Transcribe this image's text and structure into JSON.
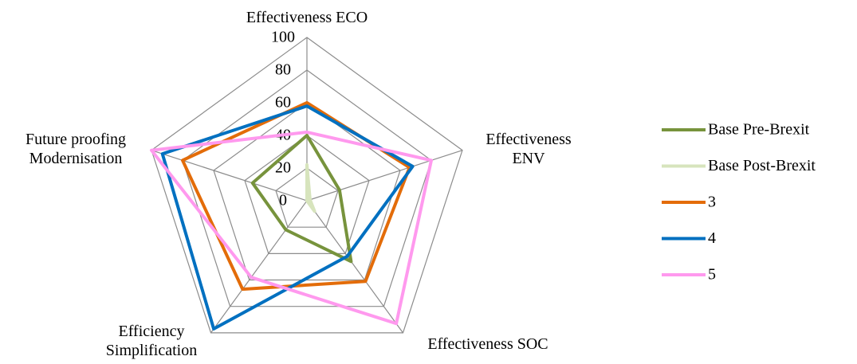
{
  "chart_data": {
    "type": "radar",
    "categories": [
      "Effectiveness ECO",
      "Effectiveness\nENV",
      "Effectiveness SOC",
      "Efficiency\nSimplification",
      "Future proofing\nModernisation"
    ],
    "ylim": [
      0,
      100
    ],
    "yticks": [
      0,
      20,
      40,
      60,
      80,
      100
    ],
    "grid": true,
    "series": [
      {
        "name": "Base Pre-Brexit",
        "color": "#77933c",
        "values": [
          40,
          21,
          46,
          22,
          35
        ]
      },
      {
        "name": "Base Post-Brexit",
        "color": "#d7e4bd",
        "values": [
          22,
          2,
          8,
          0,
          0
        ]
      },
      {
        "name": "3",
        "color": "#e36c09",
        "values": [
          60,
          66,
          61,
          67,
          80
        ]
      },
      {
        "name": "4",
        "color": "#0070c0",
        "values": [
          58,
          68,
          42,
          97,
          93
        ]
      },
      {
        "name": "5",
        "color": "#ff99ee",
        "values": [
          42,
          80,
          93,
          58,
          100
        ]
      }
    ]
  }
}
